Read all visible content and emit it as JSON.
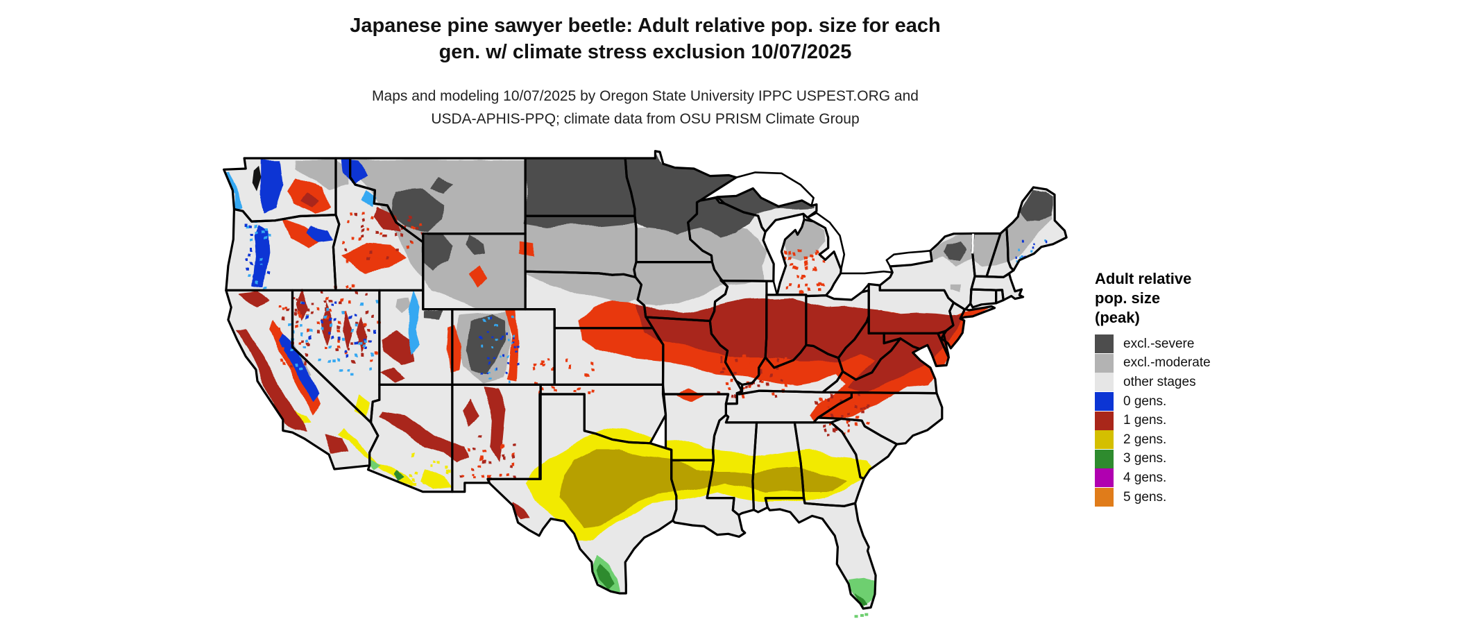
{
  "title": {
    "line1": "Japanese pine sawyer beetle: Adult relative pop. size for each",
    "line2": "gen. w/ climate stress exclusion 10/07/2025"
  },
  "subtitle": {
    "line1": "Maps and modeling 10/07/2025 by Oregon State University IPPC USPEST.ORG and",
    "line2": "USDA-APHIS-PPQ; climate data from OSU PRISM Climate Group"
  },
  "legend": {
    "title_lines": [
      "Adult relative",
      "pop. size",
      "(peak)"
    ],
    "items": [
      {
        "label": "excl.-severe",
        "color": "#4d4d4d"
      },
      {
        "label": "excl.-moderate",
        "color": "#b3b3b3"
      },
      {
        "label": "other stages",
        "color": "#e6e6e6"
      },
      {
        "label": "0 gens.",
        "color": "#0c35d4"
      },
      {
        "label": "1 gens.",
        "color": "#a9271a"
      },
      {
        "label": "2 gens.",
        "color": "#d4bf00"
      },
      {
        "label": "3 gens.",
        "color": "#2e8b2e"
      },
      {
        "label": "4 gens.",
        "color": "#b000b0"
      },
      {
        "label": "5 gens.",
        "color": "#e07c1a"
      }
    ]
  },
  "map": {
    "palette": {
      "excl_severe": "#4d4d4d",
      "excl_moderate": "#b3b3b3",
      "other_stages": "#e8e8e8",
      "gens0": "#0c35d4",
      "gens0_light": "#35a8f2",
      "gens1": "#a9271a",
      "gens1_bright": "#e8380e",
      "gens2": "#d4bf00",
      "gens2_bright": "#f2ea00",
      "gens2_olive": "#b7a000",
      "gens3": "#2e8b2e",
      "gens3_light": "#6ecf70",
      "gens4": "#b000b0",
      "gens5": "#e07c1a",
      "border": "#000000",
      "water": "#ffffff",
      "sound": "#141414"
    }
  }
}
